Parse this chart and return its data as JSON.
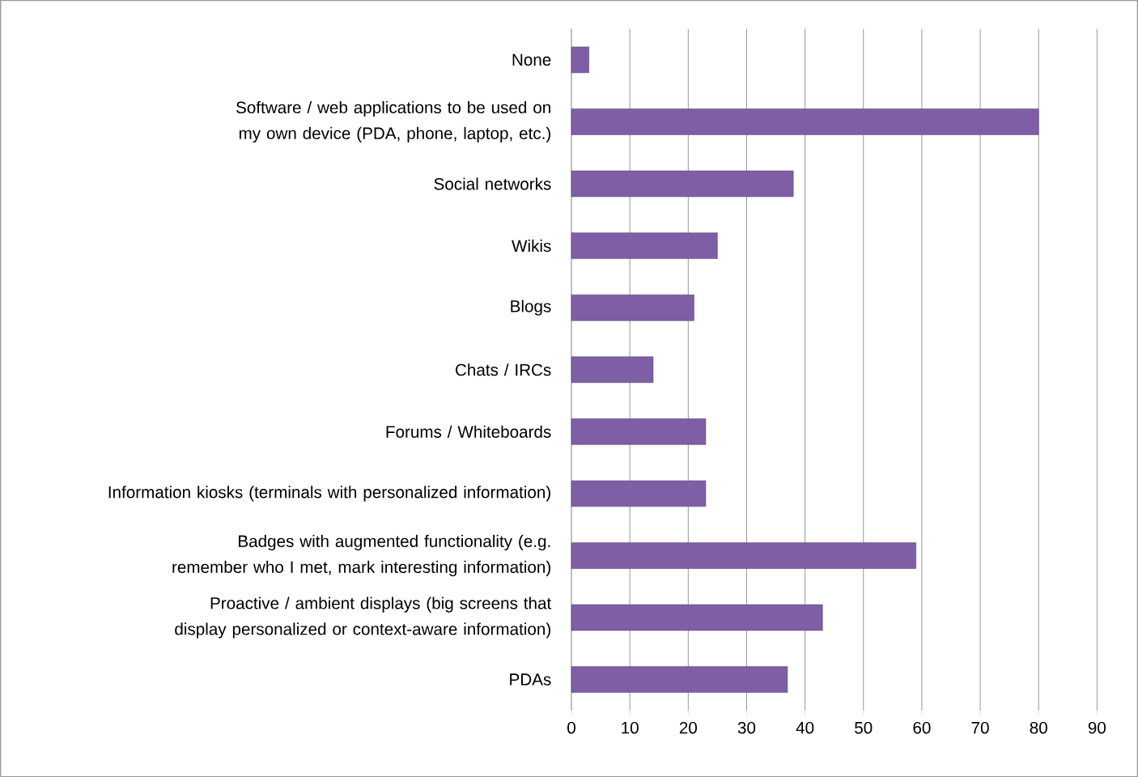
{
  "chart_data": {
    "type": "bar",
    "orientation": "horizontal",
    "categories": [
      "None",
      "Software / web applications to be used on my own device (PDA, phone, laptop, etc.)",
      "Social networks",
      "Wikis",
      "Blogs",
      "Chats / IRCs",
      "Forums / Whiteboards",
      "Information kiosks (terminals with personalized information)",
      "Badges with augmented functionality (e.g. remember who I met, mark interesting information)",
      "Proactive / ambient displays (big screens that display personalized or context-aware information)",
      "PDAs"
    ],
    "values": [
      3,
      80,
      38,
      25,
      21,
      14,
      23,
      23,
      59,
      43,
      37
    ],
    "color": "#7e5fa6",
    "xlim": [
      0,
      90
    ],
    "xticks": [
      0,
      10,
      20,
      30,
      40,
      50,
      60,
      70,
      80,
      90
    ],
    "grid": "x"
  }
}
